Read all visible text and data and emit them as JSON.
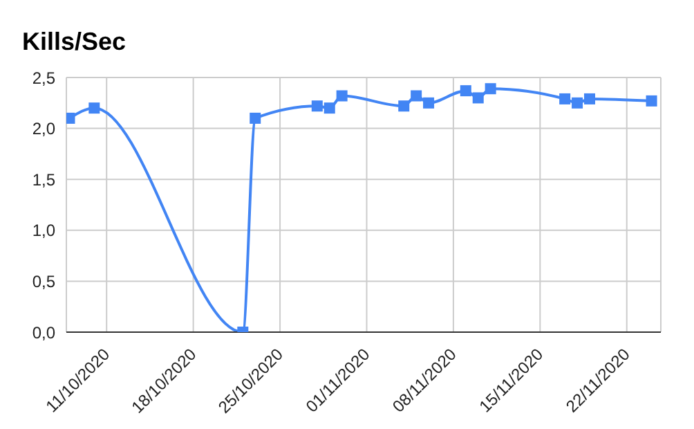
{
  "chart_data": {
    "type": "line",
    "title": "Kills/Sec",
    "x": [
      "2020-10-08",
      "2020-10-10",
      "2020-10-22",
      "2020-10-23",
      "2020-10-28",
      "2020-10-29",
      "2020-10-30",
      "2020-11-04",
      "2020-11-05",
      "2020-11-06",
      "2020-11-09",
      "2020-11-10",
      "2020-11-11",
      "2020-11-17",
      "2020-11-18",
      "2020-11-19",
      "2020-11-24"
    ],
    "series": [
      {
        "color": "#4285f4",
        "values": [
          2.1,
          2.2,
          0,
          2.1,
          2.22,
          2.2,
          2.32,
          2.22,
          2.32,
          2.25,
          2.37,
          2.3,
          2.39,
          2.29,
          2.25,
          2.29,
          2.27
        ]
      }
    ],
    "xlim": [
      "2020-10-07T18:00",
      "2020-11-24T18:00"
    ],
    "xticks": [
      {
        "value": "2020-10-11",
        "label": "11/10/2020"
      },
      {
        "value": "2020-10-18",
        "label": "18/10/2020"
      },
      {
        "value": "2020-10-25",
        "label": "25/10/2020"
      },
      {
        "value": "2020-11-01",
        "label": "01/11/2020"
      },
      {
        "value": "2020-11-08",
        "label": "08/11/2020"
      },
      {
        "value": "2020-11-15",
        "label": "15/11/2020"
      },
      {
        "value": "2020-11-22",
        "label": "22/11/2020"
      }
    ],
    "ylim": [
      0,
      2.5
    ],
    "yticks": [
      {
        "value": 0,
        "label": "0,0"
      },
      {
        "value": 0.5,
        "label": "0,5"
      },
      {
        "value": 1,
        "label": "1,0"
      },
      {
        "value": 1.5,
        "label": "1,5"
      },
      {
        "value": 2,
        "label": "2,0"
      },
      {
        "value": 2.5,
        "label": "2,5"
      }
    ],
    "grid": true,
    "marker": "square",
    "line_style": "solid",
    "legend": false
  }
}
